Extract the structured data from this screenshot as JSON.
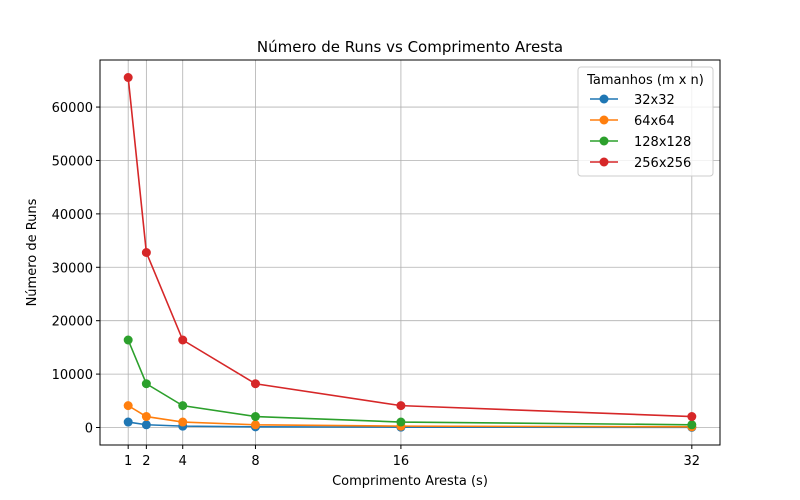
{
  "chart_data": {
    "type": "line",
    "title": "Número de Runs vs Comprimento Aresta",
    "xlabel": "Comprimento Aresta (s)",
    "ylabel": "Número de Runs",
    "x": [
      1,
      2,
      4,
      8,
      16,
      32
    ],
    "x_ticks": [
      1,
      2,
      4,
      8,
      16,
      32
    ],
    "y_ticks": [
      0,
      10000,
      20000,
      30000,
      40000,
      50000,
      60000
    ],
    "xlim": [
      -0.55,
      33.55
    ],
    "ylim": [
      -3277,
      68813
    ],
    "grid": true,
    "legend_title": "Tamanhos (m x n)",
    "legend_position": "top-right",
    "series": [
      {
        "name": "32x32",
        "color": "#1f77b4",
        "values": [
          1024,
          512,
          256,
          128,
          64,
          32
        ]
      },
      {
        "name": "64x64",
        "color": "#ff7f0e",
        "values": [
          4096,
          2048,
          1024,
          512,
          256,
          128
        ]
      },
      {
        "name": "128x128",
        "color": "#2ca02c",
        "values": [
          16384,
          8192,
          4096,
          2048,
          1024,
          512
        ]
      },
      {
        "name": "256x256",
        "color": "#d62728",
        "values": [
          65536,
          32768,
          16384,
          8192,
          4096,
          2048
        ]
      }
    ]
  }
}
